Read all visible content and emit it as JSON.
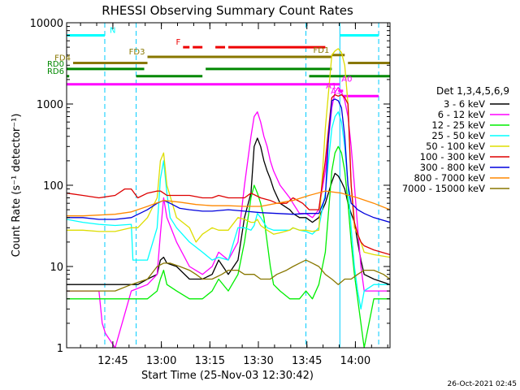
{
  "chart_data": {
    "type": "line",
    "title": "RHESSI Observing Summary Count Rates",
    "xlabel": "Start Time (25-Nov-03 12:30:42)",
    "ylabel": "Count Rate (s⁻¹ detector⁻¹)",
    "yscale": "log",
    "ylim": [
      1,
      10000
    ],
    "xlim_minutes": [
      0,
      100
    ],
    "x_ticks": [
      {
        "min": 14.3,
        "label": "12:45"
      },
      {
        "min": 29.3,
        "label": "13:00"
      },
      {
        "min": 44.3,
        "label": "13:15"
      },
      {
        "min": 59.3,
        "label": "13:30"
      },
      {
        "min": 74.3,
        "label": "13:45"
      },
      {
        "min": 89.3,
        "label": "14:00"
      }
    ],
    "y_ticks": [
      {
        "value": 1,
        "label": "1"
      },
      {
        "value": 10,
        "label": "10"
      },
      {
        "value": 100,
        "label": "100"
      },
      {
        "value": 1000,
        "label": "1000"
      },
      {
        "value": 10000,
        "label": "10000"
      }
    ],
    "legend_title": "Det 1,3,4,5,6,9",
    "legend_placement": "right",
    "series": [
      {
        "name": "3 - 6 keV",
        "color": "#000000",
        "x": [
          0,
          10,
          20,
          22,
          25,
          28,
          29,
          30,
          31,
          34,
          38,
          42,
          45,
          47,
          50,
          53,
          55,
          57,
          58,
          59,
          60,
          61,
          62,
          63,
          64,
          66,
          69,
          70,
          72,
          74,
          76,
          78,
          80,
          82,
          83,
          84,
          85,
          86,
          87,
          88,
          89,
          90,
          91,
          92,
          95,
          100
        ],
        "y": [
          6,
          6,
          6,
          6,
          7,
          8,
          12,
          13,
          11,
          10,
          7,
          7,
          8,
          12,
          8,
          12,
          40,
          80,
          300,
          380,
          300,
          200,
          150,
          120,
          90,
          60,
          50,
          45,
          40,
          40,
          35,
          40,
          60,
          110,
          140,
          130,
          110,
          90,
          60,
          45,
          35,
          20,
          12,
          8,
          7,
          6
        ]
      },
      {
        "name": "6 - 12 keV",
        "color": "#ff00ff",
        "x": [
          0,
          5,
          10,
          11,
          12,
          15,
          20,
          25,
          28,
          29,
          30,
          31,
          34,
          38,
          42,
          45,
          47,
          50,
          53,
          55,
          57,
          58,
          59,
          60,
          61,
          62,
          63,
          64,
          66,
          69,
          70,
          72,
          74,
          76,
          78,
          80,
          82,
          83,
          84,
          85,
          86,
          87,
          88,
          89,
          90,
          91,
          92,
          95,
          100
        ],
        "y": [
          5,
          5,
          5,
          2,
          1.5,
          1,
          5,
          6,
          8,
          25,
          70,
          40,
          20,
          10,
          8,
          10,
          15,
          12,
          20,
          100,
          400,
          700,
          800,
          600,
          400,
          300,
          200,
          150,
          100,
          70,
          60,
          45,
          45,
          40,
          50,
          150,
          900,
          1400,
          1600,
          1400,
          1100,
          700,
          300,
          100,
          30,
          10,
          5,
          5,
          5
        ]
      },
      {
        "name": "12 - 25 keV",
        "color": "#00ee00",
        "x": [
          0,
          10,
          20,
          25,
          28,
          29,
          30,
          31,
          34,
          38,
          42,
          45,
          47,
          50,
          53,
          55,
          57,
          58,
          59,
          60,
          61,
          62,
          63,
          64,
          66,
          69,
          70,
          72,
          74,
          76,
          78,
          80,
          82,
          83,
          84,
          85,
          86,
          87,
          88,
          89,
          90,
          91,
          92,
          95,
          100
        ],
        "y": [
          4,
          4,
          4,
          4,
          5,
          7,
          9,
          6,
          5,
          4,
          4,
          5,
          7,
          5,
          8,
          20,
          70,
          100,
          80,
          60,
          40,
          20,
          10,
          6,
          5,
          4,
          4,
          4,
          5,
          4,
          6,
          15,
          150,
          250,
          300,
          250,
          150,
          60,
          20,
          8,
          4,
          2,
          1,
          4,
          4
        ]
      },
      {
        "name": "25 - 50 keV",
        "color": "#00ffff",
        "x": [
          0,
          5,
          10,
          15,
          20,
          20.5,
          25,
          28,
          29,
          30,
          31,
          32,
          34,
          38,
          42,
          45,
          47,
          50,
          53,
          55,
          57,
          58,
          59,
          60,
          62,
          64,
          66,
          69,
          70,
          72,
          74,
          76,
          78,
          80,
          82,
          83,
          84,
          85,
          86,
          87,
          88,
          89,
          90,
          91,
          92,
          95,
          100
        ],
        "y": [
          38,
          35,
          33,
          32,
          33,
          12,
          12,
          30,
          120,
          200,
          80,
          40,
          30,
          20,
          15,
          12,
          13,
          12,
          30,
          30,
          28,
          32,
          45,
          40,
          30,
          28,
          28,
          28,
          30,
          28,
          27,
          25,
          30,
          80,
          500,
          700,
          800,
          600,
          300,
          100,
          30,
          10,
          5,
          3,
          5,
          6,
          6
        ]
      },
      {
        "name": "50 - 100 keV",
        "color": "#dddd00",
        "x": [
          0,
          5,
          10,
          15,
          20,
          22,
          25,
          28,
          29,
          30,
          31,
          34,
          38,
          40,
          42,
          45,
          47,
          50,
          53,
          55,
          57,
          58,
          59,
          60,
          62,
          64,
          66,
          69,
          70,
          72,
          74,
          76,
          78,
          80,
          82,
          83,
          84,
          85,
          86,
          87,
          88,
          89,
          90,
          91,
          92,
          95,
          100
        ],
        "y": [
          28,
          28,
          27,
          27,
          30,
          30,
          40,
          70,
          200,
          250,
          100,
          40,
          30,
          20,
          25,
          30,
          28,
          28,
          40,
          38,
          35,
          35,
          38,
          32,
          28,
          25,
          26,
          28,
          30,
          28,
          28,
          27,
          28,
          500,
          4000,
          4500,
          4800,
          4300,
          3000,
          1000,
          100,
          30,
          25,
          20,
          15,
          14,
          13
        ]
      },
      {
        "name": "100 - 300 keV",
        "color": "#dd0000",
        "x": [
          0,
          5,
          10,
          15,
          18,
          20,
          22,
          25,
          28,
          29,
          30,
          31,
          34,
          38,
          42,
          45,
          47,
          50,
          53,
          55,
          57,
          60,
          63,
          65,
          68,
          70,
          73,
          75,
          78,
          80,
          82,
          83,
          84,
          85,
          86,
          87,
          88,
          89,
          90,
          91,
          92,
          95,
          100
        ],
        "y": [
          80,
          75,
          70,
          75,
          90,
          90,
          70,
          80,
          85,
          85,
          80,
          75,
          75,
          75,
          70,
          70,
          75,
          70,
          70,
          70,
          80,
          70,
          65,
          60,
          60,
          70,
          60,
          50,
          50,
          200,
          1200,
          1300,
          1250,
          1300,
          1200,
          1000,
          100,
          35,
          25,
          20,
          18,
          16,
          14
        ]
      },
      {
        "name": "300 - 800 keV",
        "color": "#0000dd",
        "x": [
          0,
          5,
          10,
          15,
          20,
          25,
          28,
          30,
          32,
          35,
          38,
          42,
          45,
          50,
          55,
          60,
          65,
          70,
          75,
          78,
          80,
          81,
          82,
          83,
          84,
          85,
          86,
          87,
          88,
          89,
          90,
          92,
          95,
          100
        ],
        "y": [
          40,
          40,
          38,
          38,
          40,
          50,
          60,
          65,
          60,
          52,
          50,
          48,
          48,
          50,
          48,
          46,
          45,
          44,
          45,
          45,
          70,
          400,
          1100,
          1150,
          1100,
          900,
          400,
          100,
          60,
          55,
          50,
          45,
          40,
          35
        ]
      },
      {
        "name": "800 - 7000 keV",
        "color": "#ff8800",
        "x": [
          0,
          5,
          10,
          15,
          20,
          25,
          30,
          35,
          40,
          45,
          50,
          55,
          60,
          65,
          70,
          75,
          80,
          85,
          90,
          95,
          100
        ],
        "y": [
          42,
          42,
          43,
          44,
          47,
          55,
          65,
          62,
          58,
          56,
          56,
          55,
          55,
          60,
          65,
          75,
          85,
          80,
          70,
          60,
          50
        ]
      },
      {
        "name": "7000 - 15000 keV",
        "color": "#887700",
        "x": [
          0,
          5,
          10,
          15,
          20,
          25,
          28,
          30,
          32,
          35,
          38,
          40,
          42,
          45,
          48,
          50,
          53,
          55,
          58,
          60,
          63,
          65,
          68,
          70,
          72,
          74,
          76,
          78,
          80,
          82,
          84,
          86,
          88,
          90,
          92,
          95,
          98,
          100
        ],
        "y": [
          5,
          5,
          5,
          5,
          6,
          7,
          10,
          11,
          11,
          10,
          9,
          8,
          7,
          7,
          8,
          9,
          9,
          8,
          8,
          7,
          7,
          8,
          9,
          10,
          11,
          12,
          11,
          10,
          8,
          7,
          6,
          7,
          7,
          8,
          9,
          9,
          8,
          7
        ]
      }
    ],
    "annotations": {
      "vlines": [
        {
          "min": 11.8,
          "color": "#00ccff",
          "style": "dashed"
        },
        {
          "min": 21.5,
          "color": "#00ccff",
          "style": "dashed"
        },
        {
          "min": 74.0,
          "color": "#00ccff",
          "style": "dashed"
        },
        {
          "min": 84.5,
          "color": "#00ccff",
          "style": "solid"
        },
        {
          "min": 96.5,
          "color": "#00ccff",
          "style": "dashed"
        }
      ],
      "bars": [
        {
          "label": "N",
          "color": "#00ffff",
          "y": 7000,
          "segments": [
            [
              0,
              11.8
            ],
            [
              84.5,
              96.5
            ]
          ]
        },
        {
          "label": "F",
          "color": "#ee0000",
          "y": 5000,
          "segments": [
            [
              36,
              38
            ],
            [
              39,
              42
            ],
            [
              46,
              49
            ],
            [
              50,
              80
            ]
          ]
        },
        {
          "label": "FD1",
          "color": "#887700",
          "y": 4000,
          "segments": [
            [
              82,
              86
            ]
          ]
        },
        {
          "label": "FD3",
          "color": "#887700",
          "y": 3800,
          "segments": [
            [
              25,
              82
            ]
          ]
        },
        {
          "label": "FD4",
          "color": "#887700",
          "y": 3200,
          "segments": [
            [
              2,
              25
            ],
            [
              87,
              100
            ]
          ]
        },
        {
          "label": "RD0",
          "color": "#008800",
          "y": 2700,
          "segments": [
            [
              0,
              24
            ],
            [
              43,
              82
            ]
          ]
        },
        {
          "label": "RD6",
          "color": "#008800",
          "y": 2200,
          "segments": [
            [
              0,
              0.8
            ],
            [
              21.5,
              42
            ],
            [
              75,
              100
            ]
          ]
        },
        {
          "label": "A0",
          "color": "#ff00ff",
          "y": 1750,
          "segments": [
            [
              0,
              84.5
            ]
          ]
        },
        {
          "label": "A1",
          "color": "#ff00ff",
          "y": 1450,
          "segments": [
            [
              84,
              85.5
            ]
          ]
        },
        {
          "label": "A3",
          "color": "#ff00ff",
          "y": 1250,
          "segments": [
            [
              85.5,
              96.5
            ]
          ]
        }
      ]
    }
  },
  "footer": {
    "timestamp": "26-Oct-2021 02:45"
  }
}
